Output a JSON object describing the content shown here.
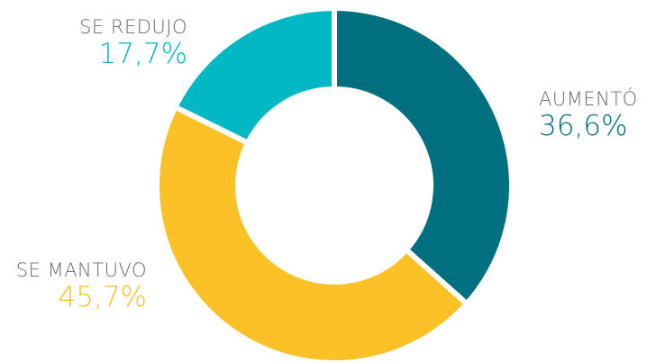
{
  "chart_data": {
    "type": "pie",
    "variant": "donut",
    "start_angle_deg": 0,
    "direction": "clockwise",
    "slices": [
      {
        "label": "AUMENTÓ",
        "value": 36.6,
        "display": "36,6%",
        "color": "#006f7f"
      },
      {
        "label": "SE MANTUVO",
        "value": 45.7,
        "display": "45,7%",
        "color": "#fbc127"
      },
      {
        "label": "SE REDUJO",
        "value": 17.7,
        "display": "17,7%",
        "color": "#00b8c3"
      }
    ]
  }
}
